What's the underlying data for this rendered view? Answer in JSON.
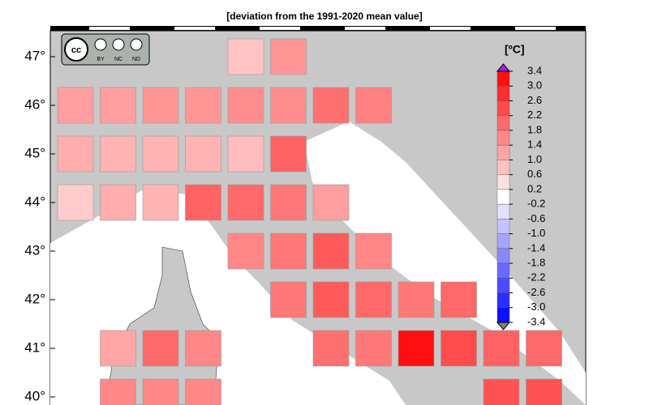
{
  "title": "[deviation from the 1991-2020 mean value]",
  "license": [
    "BY",
    "NC",
    "ND"
  ],
  "colorbar": {
    "unit": "[ºC]",
    "ticks": [
      3.4,
      {
        "value": 3.0,
        "label": "3.0"
      },
      2.6,
      2.2,
      1.8,
      1.4,
      {
        "value": 1.0,
        "label": "1.0"
      },
      0.6,
      0.2,
      -0.2,
      -0.6,
      {
        "value": -1.0,
        "label": "-1.0"
      },
      -1.4,
      -1.8,
      -2.2,
      -2.6,
      {
        "value": -3.0,
        "label": "-3.0"
      },
      -3.4
    ]
  },
  "rows": [
    {
      "label": "47°",
      "values": [
        null,
        null,
        null,
        null,
        0.8,
        1.4,
        null,
        null,
        null,
        null,
        null,
        null
      ]
    },
    {
      "label": "46°",
      "values": [
        1.3,
        1.3,
        1.4,
        1.4,
        1.5,
        1.5,
        1.9,
        1.7,
        null,
        null,
        null,
        null
      ]
    },
    {
      "label": "45°",
      "values": [
        1.1,
        1.0,
        1.0,
        1.0,
        0.9,
        2.1,
        null,
        null,
        null,
        null,
        null,
        null
      ]
    },
    {
      "label": "44°",
      "values": [
        0.7,
        1.1,
        1.0,
        2.1,
        2.0,
        1.8,
        1.3,
        null,
        null,
        null,
        null,
        null
      ]
    },
    {
      "label": "43°",
      "values": [
        null,
        null,
        null,
        null,
        1.6,
        1.8,
        2.2,
        1.6,
        null,
        null,
        null,
        null
      ]
    },
    {
      "label": "42°",
      "values": [
        null,
        null,
        null,
        null,
        null,
        1.8,
        2.2,
        2.0,
        1.8,
        2.0,
        null,
        null
      ]
    },
    {
      "label": "41°",
      "values": [
        null,
        1.2,
        2.0,
        1.6,
        null,
        null,
        1.9,
        1.8,
        3.2,
        2.4,
        2.1,
        2.0
      ]
    },
    {
      "label": "40°",
      "values": [
        null,
        1.6,
        1.6,
        1.6,
        null,
        null,
        null,
        null,
        null,
        null,
        2.3,
        2.3
      ]
    }
  ]
}
